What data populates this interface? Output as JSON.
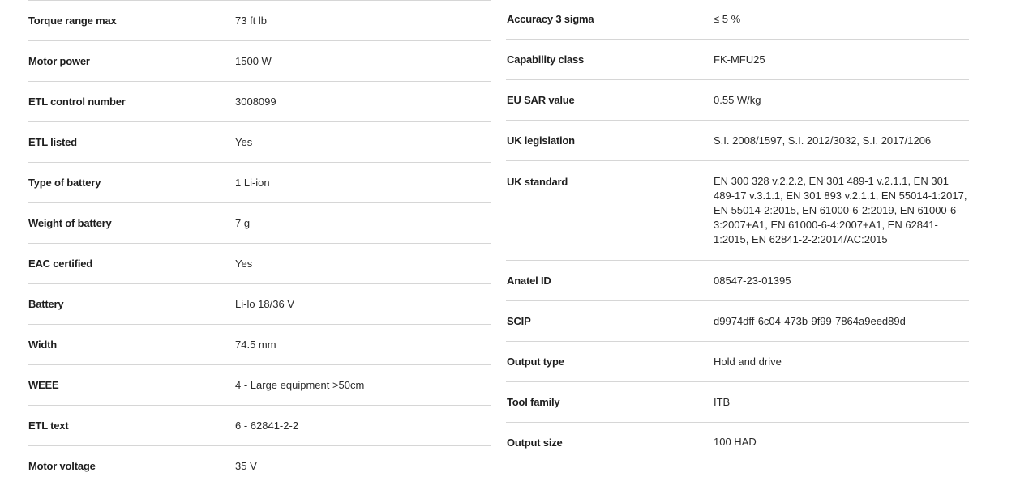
{
  "left": [
    {
      "label": "Torque range max",
      "value": "73 ft lb"
    },
    {
      "label": "Motor power",
      "value": "1500 W"
    },
    {
      "label": "ETL control number",
      "value": "3008099"
    },
    {
      "label": "ETL listed",
      "value": "Yes"
    },
    {
      "label": "Type of battery",
      "value": "1 Li-ion"
    },
    {
      "label": "Weight of battery",
      "value": "7 g"
    },
    {
      "label": "EAC certified",
      "value": "Yes"
    },
    {
      "label": "Battery",
      "value": "Li-lo 18/36 V"
    },
    {
      "label": "Width",
      "value": "74.5 mm"
    },
    {
      "label": "WEEE",
      "value": "4 - Large equipment >50cm"
    },
    {
      "label": "ETL text",
      "value": "6 - 62841-2-2"
    },
    {
      "label": "Motor voltage",
      "value": "35 V"
    }
  ],
  "right": [
    {
      "label": "Accuracy 3 sigma",
      "value": "≤ 5 %"
    },
    {
      "label": "Capability class",
      "value": "FK-MFU25"
    },
    {
      "label": "EU SAR value",
      "value": "0.55 W/kg"
    },
    {
      "label": "UK legislation",
      "value": "S.I. 2008/1597, S.I. 2012/3032, S.I. 2017/1206"
    },
    {
      "label": "UK standard",
      "value": "EN 300 328 v.2.2.2, EN 301 489-1 v.2.1.1, EN 301 489-17 v.3.1.1, EN 301 893 v.2.1.1, EN 55014-1:2017, EN 55014-2:2015, EN 61000-6-2:2019, EN 61000-6-3:2007+A1, EN 61000-6-4:2007+A1, EN 62841-1:2015, EN 62841-2-2:2014/AC:2015"
    },
    {
      "label": "Anatel ID",
      "value": "08547-23-01395"
    },
    {
      "label": "SCIP",
      "value": "d9974dff-6c04-473b-9f99-7864a9eed89d"
    },
    {
      "label": "Output type",
      "value": "Hold and drive"
    },
    {
      "label": "Tool family",
      "value": "ITB"
    },
    {
      "label": "Output size",
      "value": "100 HAD"
    }
  ]
}
